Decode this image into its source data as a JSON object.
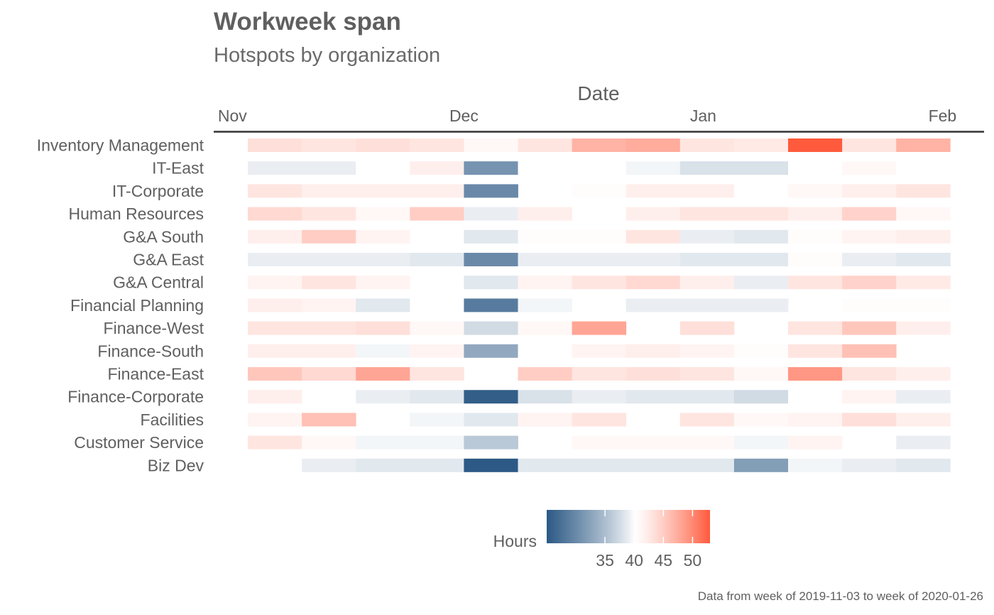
{
  "chart_data": {
    "type": "heatmap",
    "title": "Workweek span",
    "subtitle": "Hotspots by organization",
    "xlabel": "Date",
    "ylabel": "",
    "x_tick_labels": [
      "Nov",
      "Dec",
      "Jan",
      "Feb"
    ],
    "x": [
      "2019-11-03",
      "2019-11-10",
      "2019-11-17",
      "2019-11-24",
      "2019-12-01",
      "2019-12-08",
      "2019-12-15",
      "2019-12-22",
      "2019-12-29",
      "2020-01-05",
      "2020-01-12",
      "2020-01-19",
      "2020-01-26"
    ],
    "rows": [
      "Inventory Management",
      "IT-East",
      "IT-Corporate",
      "Human Resources",
      "G&A South",
      "G&A East",
      "G&A Central",
      "Financial Planning",
      "Finance-West",
      "Finance-South",
      "Finance-East",
      "Finance-Corporate",
      "Facilities",
      "Customer Service",
      "Biz Dev"
    ],
    "values": [
      [
        43.5,
        43,
        43.5,
        43,
        41,
        43,
        47,
        47.5,
        43,
        42.5,
        53,
        43,
        47
      ],
      [
        39,
        39,
        40,
        42,
        31,
        40,
        null,
        39.5,
        38,
        38,
        40,
        41,
        40
      ],
      [
        43,
        42,
        42,
        42,
        30,
        null,
        40.5,
        42,
        42,
        40,
        41,
        42,
        43
      ],
      [
        44,
        43,
        41,
        45,
        39,
        42,
        null,
        42,
        43,
        43,
        42,
        44.5,
        41
      ],
      [
        42,
        45,
        41.5,
        null,
        38.5,
        40.5,
        40.5,
        43,
        39,
        38.5,
        40.5,
        41.5,
        42
      ],
      [
        39,
        39,
        39,
        38.5,
        30,
        39,
        39,
        39,
        38.5,
        38.5,
        40.5,
        39,
        38.5
      ],
      [
        41.5,
        43,
        41.5,
        null,
        38.5,
        41.5,
        43,
        44,
        42,
        39,
        43,
        44.5,
        42.5
      ],
      [
        42,
        41.5,
        38.5,
        40,
        28.5,
        39.5,
        null,
        39,
        39,
        39,
        null,
        40.5,
        40.5
      ],
      [
        43,
        43,
        43.5,
        41,
        37.5,
        41,
        48,
        null,
        43.5,
        null,
        43,
        45.5,
        42
      ],
      [
        42,
        42,
        39.5,
        41.5,
        33,
        40,
        41.5,
        42,
        41.5,
        40.5,
        43,
        46,
        null
      ],
      [
        45.5,
        44,
        48,
        43,
        null,
        45,
        43,
        43.5,
        43,
        41,
        49,
        43,
        42
      ],
      [
        42,
        null,
        39,
        38.5,
        25.5,
        38,
        39,
        38.5,
        38.5,
        37.5,
        40,
        41.5,
        39
      ],
      [
        41.5,
        46,
        null,
        39.5,
        38.5,
        41.5,
        43,
        null,
        43,
        41,
        41.5,
        43.5,
        42
      ],
      [
        43,
        41,
        39.5,
        39.5,
        36,
        null,
        41,
        41,
        41,
        39.5,
        41.5,
        null,
        39
      ],
      [
        40,
        39,
        38.5,
        38.5,
        19,
        38.5,
        38.5,
        38.5,
        38.5,
        32,
        39.5,
        39,
        38.5
      ]
    ],
    "color_scale": {
      "title": "Hours",
      "domain": [
        25,
        53
      ],
      "ticks": [
        35,
        40,
        45,
        50
      ],
      "low_color": "#2c5985",
      "mid_color": "#ffffff",
      "high_color": "#ff5a3c",
      "midpoint": 40
    },
    "caption": "Data from week of 2019-11-03 to week of 2020-01-26"
  }
}
